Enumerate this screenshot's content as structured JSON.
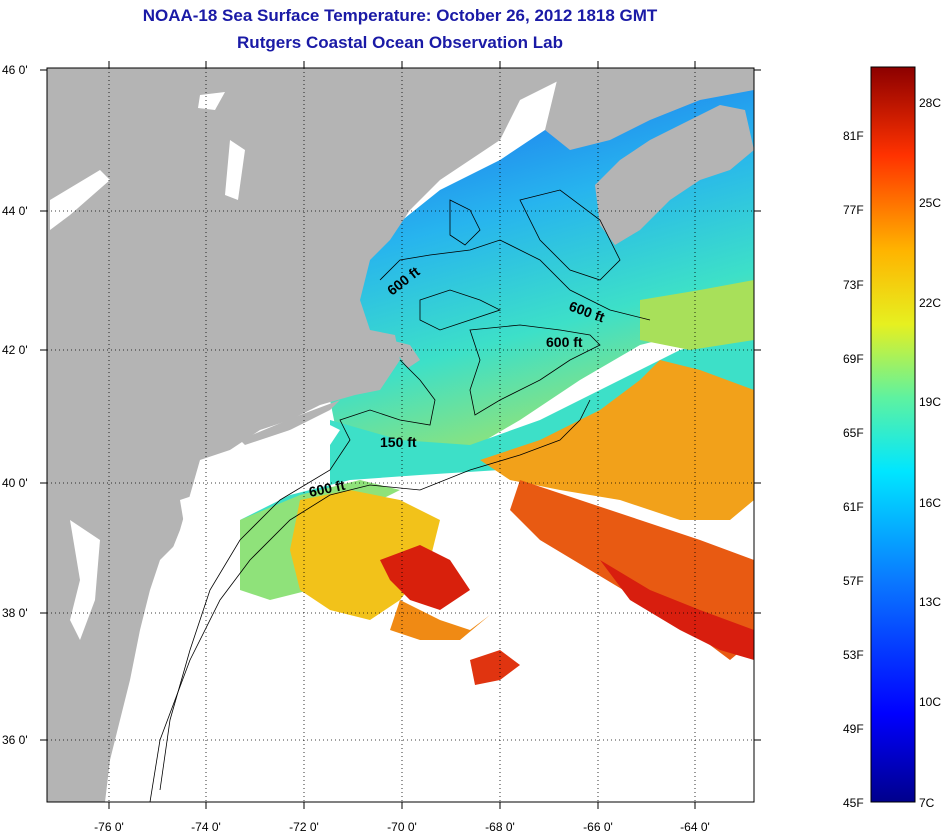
{
  "header": {
    "title": "NOAA-18 Sea Surface Temperature:  October 26, 2012 1818 GMT",
    "subtitle": "Rutgers Coastal Ocean Observation Lab"
  },
  "map": {
    "lat_labels": [
      "46 0'",
      "44 0'",
      "42 0'",
      "40 0'",
      "38 0'",
      "36 0'"
    ],
    "lon_labels": [
      "-76 0'",
      "-74 0'",
      "-72 0'",
      "-70 0'",
      "-68 0'",
      "-66 0'",
      "-64 0'"
    ],
    "contour_labels": [
      "600 ft",
      "600 ft",
      "600 ft",
      "150 ft",
      "600 ft"
    ],
    "colors": {
      "land": "#b4b4b4",
      "no_data": "#ffffff",
      "cold": "#1a5cf0",
      "cool": "#27b4ee",
      "mild": "#3de0c8",
      "warm": "#f2c21a",
      "hot": "#e23010"
    }
  },
  "colorbar": {
    "fahrenheit_labels": [
      "81F",
      "77F",
      "73F",
      "69F",
      "65F",
      "61F",
      "57F",
      "53F",
      "49F",
      "45F"
    ],
    "celsius_labels": [
      "28C",
      "25C",
      "22C",
      "19C",
      "16C",
      "13C",
      "10C",
      "7C"
    ],
    "range_c": [
      7,
      29
    ]
  }
}
